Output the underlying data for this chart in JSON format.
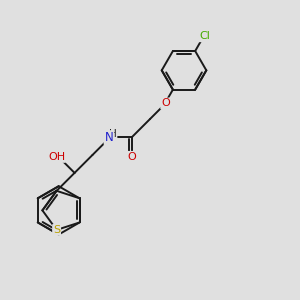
{
  "background_color": "#e0e0e0",
  "bond_color": "#1a1a1a",
  "atom_colors": {
    "S": "#b8a000",
    "O": "#cc0000",
    "N": "#2222cc",
    "Cl": "#44aa00",
    "C": "#1a1a1a"
  },
  "font_size": 8.5,
  "bond_width": 1.4,
  "figsize": [
    3.0,
    3.0
  ],
  "dpi": 100
}
